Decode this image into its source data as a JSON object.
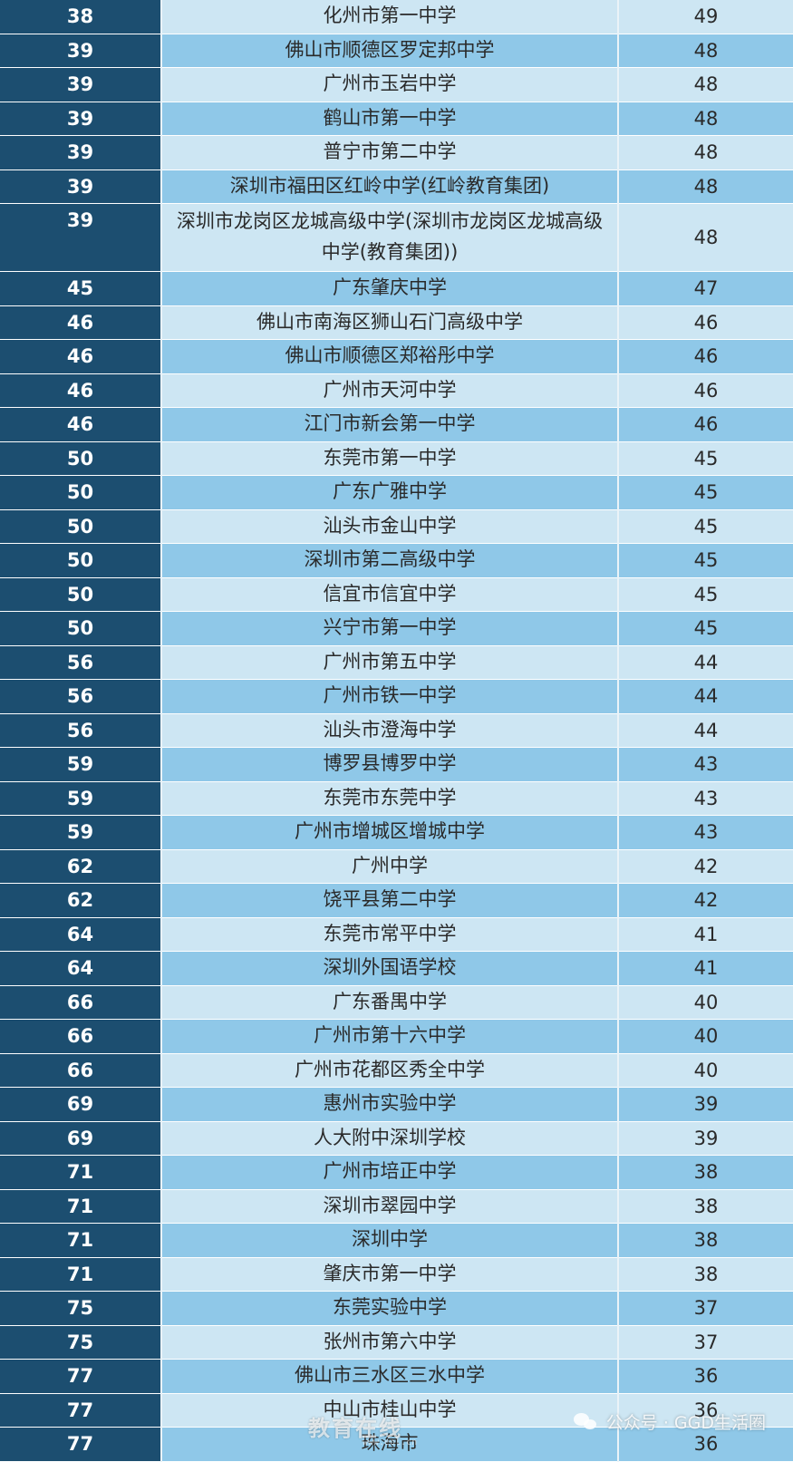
{
  "table": {
    "rows": [
      {
        "rank": "38",
        "name": "化州市第一中学",
        "count": "49"
      },
      {
        "rank": "39",
        "name": "佛山市顺德区罗定邦中学",
        "count": "48"
      },
      {
        "rank": "39",
        "name": "广州市玉岩中学",
        "count": "48"
      },
      {
        "rank": "39",
        "name": "鹤山市第一中学",
        "count": "48"
      },
      {
        "rank": "39",
        "name": "普宁市第二中学",
        "count": "48"
      },
      {
        "rank": "39",
        "name": "深圳市福田区红岭中学(红岭教育集团)",
        "count": "48"
      },
      {
        "rank": "39",
        "name": "深圳市龙岗区龙城高级中学(深圳市龙岗区龙城高级中学(教育集团))",
        "count": "48",
        "tall": true
      },
      {
        "rank": "45",
        "name": "广东肇庆中学",
        "count": "47"
      },
      {
        "rank": "46",
        "name": "佛山市南海区狮山石门高级中学",
        "count": "46"
      },
      {
        "rank": "46",
        "name": "佛山市顺德区郑裕彤中学",
        "count": "46"
      },
      {
        "rank": "46",
        "name": "广州市天河中学",
        "count": "46"
      },
      {
        "rank": "46",
        "name": "江门市新会第一中学",
        "count": "46"
      },
      {
        "rank": "50",
        "name": "东莞市第一中学",
        "count": "45"
      },
      {
        "rank": "50",
        "name": "广东广雅中学",
        "count": "45"
      },
      {
        "rank": "50",
        "name": "汕头市金山中学",
        "count": "45"
      },
      {
        "rank": "50",
        "name": "深圳市第二高级中学",
        "count": "45"
      },
      {
        "rank": "50",
        "name": "信宜市信宜中学",
        "count": "45"
      },
      {
        "rank": "50",
        "name": "兴宁市第一中学",
        "count": "45"
      },
      {
        "rank": "56",
        "name": "广州市第五中学",
        "count": "44"
      },
      {
        "rank": "56",
        "name": "广州市铁一中学",
        "count": "44"
      },
      {
        "rank": "56",
        "name": "汕头市澄海中学",
        "count": "44"
      },
      {
        "rank": "59",
        "name": "博罗县博罗中学",
        "count": "43"
      },
      {
        "rank": "59",
        "name": "东莞市东莞中学",
        "count": "43"
      },
      {
        "rank": "59",
        "name": "广州市增城区增城中学",
        "count": "43"
      },
      {
        "rank": "62",
        "name": "广州中学",
        "count": "42"
      },
      {
        "rank": "62",
        "name": "饶平县第二中学",
        "count": "42"
      },
      {
        "rank": "64",
        "name": "东莞市常平中学",
        "count": "41"
      },
      {
        "rank": "64",
        "name": "深圳外国语学校",
        "count": "41"
      },
      {
        "rank": "66",
        "name": "广东番禺中学",
        "count": "40"
      },
      {
        "rank": "66",
        "name": "广州市第十六中学",
        "count": "40"
      },
      {
        "rank": "66",
        "name": "广州市花都区秀全中学",
        "count": "40"
      },
      {
        "rank": "69",
        "name": "惠州市实验中学",
        "count": "39"
      },
      {
        "rank": "69",
        "name": "人大附中深圳学校",
        "count": "39"
      },
      {
        "rank": "71",
        "name": "广州市培正中学",
        "count": "38"
      },
      {
        "rank": "71",
        "name": "深圳市翠园中学",
        "count": "38"
      },
      {
        "rank": "71",
        "name": "深圳中学",
        "count": "38"
      },
      {
        "rank": "71",
        "name": "肇庆市第一中学",
        "count": "38"
      },
      {
        "rank": "75",
        "name": "东莞实验中学",
        "count": "37"
      },
      {
        "rank": "75",
        "name": "张州市第六中学",
        "count": "37"
      },
      {
        "rank": "77",
        "name": "佛山市三水区三水中学",
        "count": "36"
      },
      {
        "rank": "77",
        "name": "中山市桂山中学",
        "count": "36"
      },
      {
        "rank": "77",
        "name": "珠海市",
        "count": "36"
      }
    ]
  },
  "watermark": {
    "icon": "wechat-icon",
    "text": "公众号 · GGD生活圈"
  },
  "site_mark": {
    "text": "教育在线",
    "url": "www.eol.cn"
  },
  "colors": {
    "rank_bg": "#1c4e70",
    "row_dark": "#8fc8e8",
    "row_light": "#cde6f3"
  }
}
